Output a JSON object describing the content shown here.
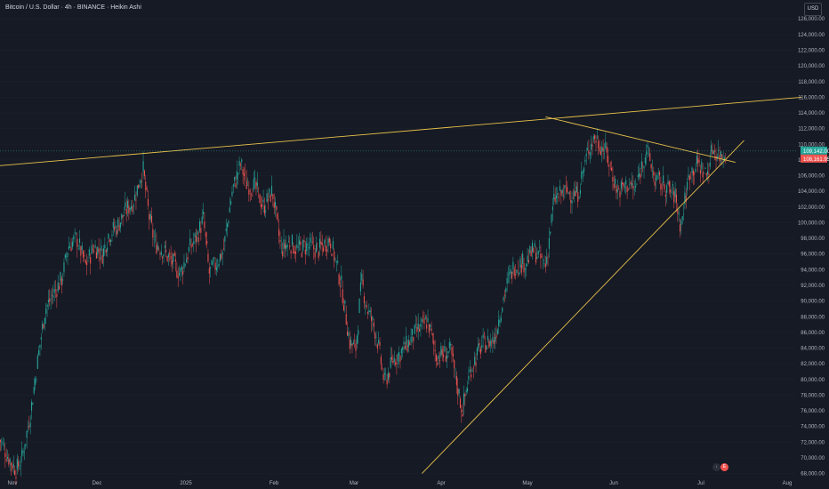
{
  "header": {
    "title": "Bitcoin / U.S. Dollar · 4h · BINANCE · Heikin Ashi",
    "currency": "USD"
  },
  "colors": {
    "background": "#161a25",
    "up": "#26a69a",
    "down": "#ef5350",
    "trendline": "#e8c24a",
    "axis_text": "#b2b5be"
  },
  "chart_data": {
    "type": "candlestick",
    "x_ticks": [
      "Nov",
      "Dec",
      "2025",
      "Feb",
      "Mar",
      "Apr",
      "May",
      "Jun",
      "Jul",
      "Aug"
    ],
    "y_ticks": [
      "126,000.00",
      "124,000.00",
      "122,000.00",
      "120,000.00",
      "118,000.00",
      "116,000.00",
      "114,000.00",
      "112,000.00",
      "110,000.00",
      "108,000.00",
      "106,000.00",
      "104,000.00",
      "102,000.00",
      "100,000.00",
      "98,000.00",
      "96,000.00",
      "94,000.00",
      "92,000.00",
      "90,000.00",
      "88,000.00",
      "86,000.00",
      "84,000.00",
      "82,000.00",
      "80,000.00",
      "78,000.00",
      "76,000.00",
      "74,000.00",
      "72,000.00",
      "70,000.00",
      "68,000.00"
    ],
    "ylim": [
      67500,
      127500
    ],
    "current_price": "109,142.00",
    "secondary_price": "108,161.95",
    "price_path": [
      [
        "2024-10-28",
        72500
      ],
      [
        "2024-11-01",
        69500
      ],
      [
        "2024-11-03",
        68500
      ],
      [
        "2024-11-05",
        70000
      ],
      [
        "2024-11-08",
        76000
      ],
      [
        "2024-11-11",
        84000
      ],
      [
        "2024-11-13",
        89000
      ],
      [
        "2024-11-16",
        91000
      ],
      [
        "2024-11-19",
        93000
      ],
      [
        "2024-11-21",
        97000
      ],
      [
        "2024-11-24",
        98000
      ],
      [
        "2024-11-27",
        94500
      ],
      [
        "2024-11-30",
        97000
      ],
      [
        "2024-12-03",
        96000
      ],
      [
        "2024-12-05",
        98500
      ],
      [
        "2024-12-08",
        99500
      ],
      [
        "2024-12-11",
        101500
      ],
      [
        "2024-12-14",
        103000
      ],
      [
        "2024-12-17",
        107000
      ],
      [
        "2024-12-19",
        101000
      ],
      [
        "2024-12-21",
        97500
      ],
      [
        "2024-12-24",
        96500
      ],
      [
        "2024-12-26",
        95500
      ],
      [
        "2024-12-30",
        93500
      ],
      [
        "2025-01-02",
        96500
      ],
      [
        "2025-01-05",
        98500
      ],
      [
        "2025-01-07",
        100500
      ],
      [
        "2025-01-09",
        93500
      ],
      [
        "2025-01-11",
        94500
      ],
      [
        "2025-01-14",
        96500
      ],
      [
        "2025-01-17",
        104000
      ],
      [
        "2025-01-20",
        107500
      ],
      [
        "2025-01-22",
        105000
      ],
      [
        "2025-01-25",
        104500
      ],
      [
        "2025-01-28",
        102000
      ],
      [
        "2025-01-31",
        104000
      ],
      [
        "2025-02-03",
        96500
      ],
      [
        "2025-02-06",
        97500
      ],
      [
        "2025-02-09",
        96500
      ],
      [
        "2025-02-12",
        97000
      ],
      [
        "2025-02-16",
        96500
      ],
      [
        "2025-02-20",
        98000
      ],
      [
        "2025-02-24",
        92000
      ],
      [
        "2025-02-27",
        84500
      ],
      [
        "2025-03-01",
        84000
      ],
      [
        "2025-03-03",
        92500
      ],
      [
        "2025-03-05",
        89000
      ],
      [
        "2025-03-08",
        86000
      ],
      [
        "2025-03-11",
        79500
      ],
      [
        "2025-03-14",
        82500
      ],
      [
        "2025-03-18",
        84000
      ],
      [
        "2025-03-22",
        86000
      ],
      [
        "2025-03-26",
        87500
      ],
      [
        "2025-03-29",
        83000
      ],
      [
        "2025-04-03",
        83500
      ],
      [
        "2025-04-07",
        76000
      ],
      [
        "2025-04-10",
        81500
      ],
      [
        "2025-04-14",
        84500
      ],
      [
        "2025-04-18",
        85000
      ],
      [
        "2025-04-22",
        91500
      ],
      [
        "2025-04-25",
        94500
      ],
      [
        "2025-04-29",
        95000
      ],
      [
        "2025-05-02",
        96500
      ],
      [
        "2025-05-06",
        94500
      ],
      [
        "2025-05-09",
        103000
      ],
      [
        "2025-05-13",
        104000
      ],
      [
        "2025-05-17",
        103500
      ],
      [
        "2025-05-21",
        109500
      ],
      [
        "2025-05-23",
        111000
      ],
      [
        "2025-05-27",
        109000
      ],
      [
        "2025-05-31",
        104000
      ],
      [
        "2025-06-04",
        105000
      ],
      [
        "2025-06-06",
        104000
      ],
      [
        "2025-06-10",
        109500
      ],
      [
        "2025-06-13",
        105500
      ],
      [
        "2025-06-17",
        104500
      ],
      [
        "2025-06-20",
        103500
      ],
      [
        "2025-06-22",
        99500
      ],
      [
        "2025-06-25",
        106500
      ],
      [
        "2025-06-28",
        107500
      ],
      [
        "2025-07-01",
        106000
      ],
      [
        "2025-07-03",
        109500
      ],
      [
        "2025-07-06",
        108500
      ],
      [
        "2025-07-08",
        109000
      ]
    ],
    "trendlines": [
      {
        "from": [
          "2024-10-26",
          107200
        ],
        "to": [
          "2025-08-03",
          116000
        ]
      },
      {
        "from": [
          "2025-05-06",
          113500
        ],
        "to": [
          "2025-07-11",
          107700
        ]
      },
      {
        "from": [
          "2025-03-24",
          68000
        ],
        "to": [
          "2025-07-14",
          110500
        ]
      }
    ]
  }
}
